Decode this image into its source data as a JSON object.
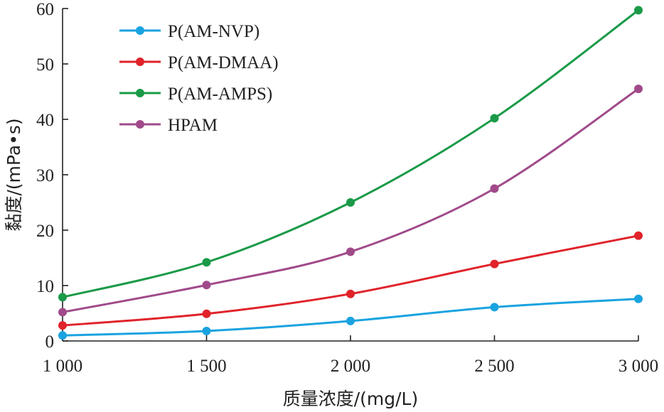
{
  "chart_data": {
    "type": "line",
    "title": "",
    "xlabel": "质量浓度/(mg/L)",
    "ylabel": "黏度/(mPa•s)",
    "xlim": [
      1000,
      3000
    ],
    "ylim": [
      0,
      60
    ],
    "xticks": [
      1000,
      1500,
      2000,
      2500,
      3000
    ],
    "xtick_labels": [
      "1 000",
      "1 500",
      "2 000",
      "2 500",
      "3 000"
    ],
    "yticks": [
      0,
      10,
      20,
      30,
      40,
      50,
      60
    ],
    "ytick_labels": [
      "0",
      "10",
      "20",
      "30",
      "40",
      "50",
      "60"
    ],
    "grid": false,
    "legend_position": "top-left",
    "x": [
      1000,
      1500,
      2000,
      2500,
      3000
    ],
    "series": [
      {
        "name": "P(AM-NVP)",
        "color": "#1aa3e0",
        "values": [
          1.0,
          1.8,
          3.6,
          6.1,
          7.6
        ]
      },
      {
        "name": "P(AM-DMAA)",
        "color": "#e0232b",
        "values": [
          2.8,
          4.9,
          8.5,
          13.9,
          19.0
        ]
      },
      {
        "name": "P(AM-AMPS)",
        "color": "#1a9a48",
        "values": [
          7.9,
          14.2,
          25.0,
          40.2,
          59.7
        ]
      },
      {
        "name": "HPAM",
        "color": "#a04a8a",
        "values": [
          5.2,
          10.1,
          16.1,
          27.5,
          45.5
        ]
      }
    ]
  }
}
